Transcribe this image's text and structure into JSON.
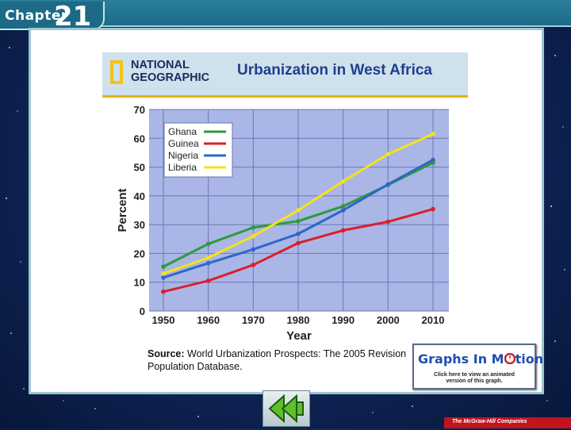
{
  "header": {
    "chapter_label": "Chapter",
    "chapter_number": "21"
  },
  "figure": {
    "publisher_line1": "NATIONAL",
    "publisher_line2": "GEOGRAPHIC",
    "source_label": "Source:",
    "source_text": "World Urbanization Prospects: The 2005 Revision",
    "source_text2": "Population Database."
  },
  "graphs_in_motion": {
    "title_prefix": "Graphs In M",
    "title_suffix": "tion",
    "subtitle_line1": "Click here to view an animated",
    "subtitle_line2": "version of this graph."
  },
  "footer": {
    "company": "The McGraw-Hill Companies"
  },
  "nav": {
    "back_icon": "double-left-arrow-icon"
  },
  "chart_data": {
    "type": "line",
    "title": "Urbanization in West Africa",
    "xlabel": "Year",
    "ylabel": "Percent",
    "x": [
      1950,
      1960,
      1970,
      1980,
      1990,
      2000,
      2010
    ],
    "ylim": [
      0,
      70
    ],
    "yticks": [
      0,
      10,
      20,
      30,
      40,
      50,
      60,
      70
    ],
    "grid": true,
    "legend_position": "top-left",
    "series": [
      {
        "name": "Ghana",
        "color": "#2e9a3e",
        "values": [
          15.4,
          23.3,
          29.0,
          31.2,
          36.4,
          43.8,
          51.5
        ]
      },
      {
        "name": "Guinea",
        "color": "#d8202a",
        "values": [
          6.7,
          10.5,
          16.0,
          23.6,
          28.0,
          31.0,
          35.4
        ]
      },
      {
        "name": "Nigeria",
        "color": "#2f66c9",
        "values": [
          11.6,
          16.6,
          21.4,
          26.8,
          35.0,
          44.0,
          52.5
        ]
      },
      {
        "name": "Liberia",
        "color": "#f4e318",
        "values": [
          13.0,
          18.5,
          26.0,
          35.0,
          45.0,
          54.5,
          61.5
        ]
      }
    ]
  }
}
